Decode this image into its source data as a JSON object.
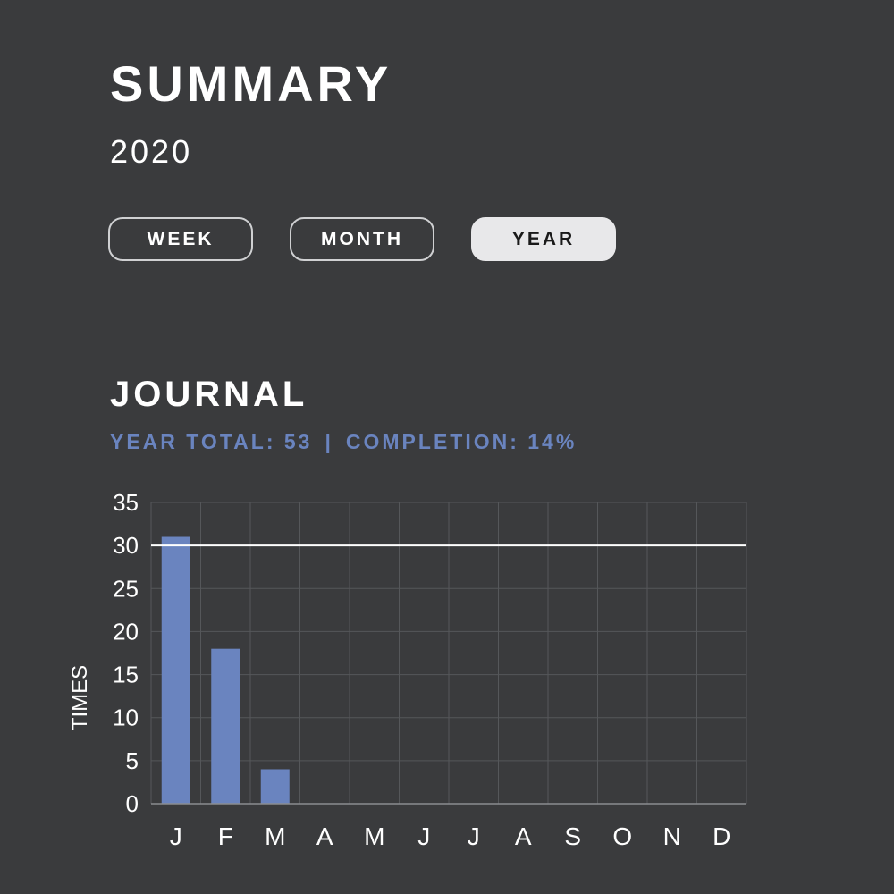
{
  "header": {
    "title": "SUMMARY",
    "subtitle": "2020"
  },
  "tabs": [
    {
      "label": "WEEK",
      "active": false
    },
    {
      "label": "MONTH",
      "active": false
    },
    {
      "label": "YEAR",
      "active": true
    }
  ],
  "section": {
    "title": "JOURNAL",
    "year_total": "YEAR TOTAL: 53",
    "separator": "|",
    "completion": "COMPLETION: 14%"
  },
  "colors": {
    "background": "#3a3b3d",
    "accent": "#6a84bf",
    "bar": "#6a84bf",
    "grid": "#55575a",
    "target_line": "#ffffff"
  },
  "chart_data": {
    "type": "bar",
    "categories": [
      "J",
      "F",
      "M",
      "A",
      "M",
      "J",
      "J",
      "A",
      "S",
      "O",
      "N",
      "D"
    ],
    "values": [
      31,
      18,
      4,
      0,
      0,
      0,
      0,
      0,
      0,
      0,
      0,
      0
    ],
    "ylabel": "TIMES",
    "xlabel": "",
    "ylim": [
      0,
      35
    ],
    "yticks": [
      "0",
      "5",
      "10",
      "15",
      "20",
      "25",
      "30",
      "35"
    ],
    "target_line": 30,
    "grid": true
  }
}
